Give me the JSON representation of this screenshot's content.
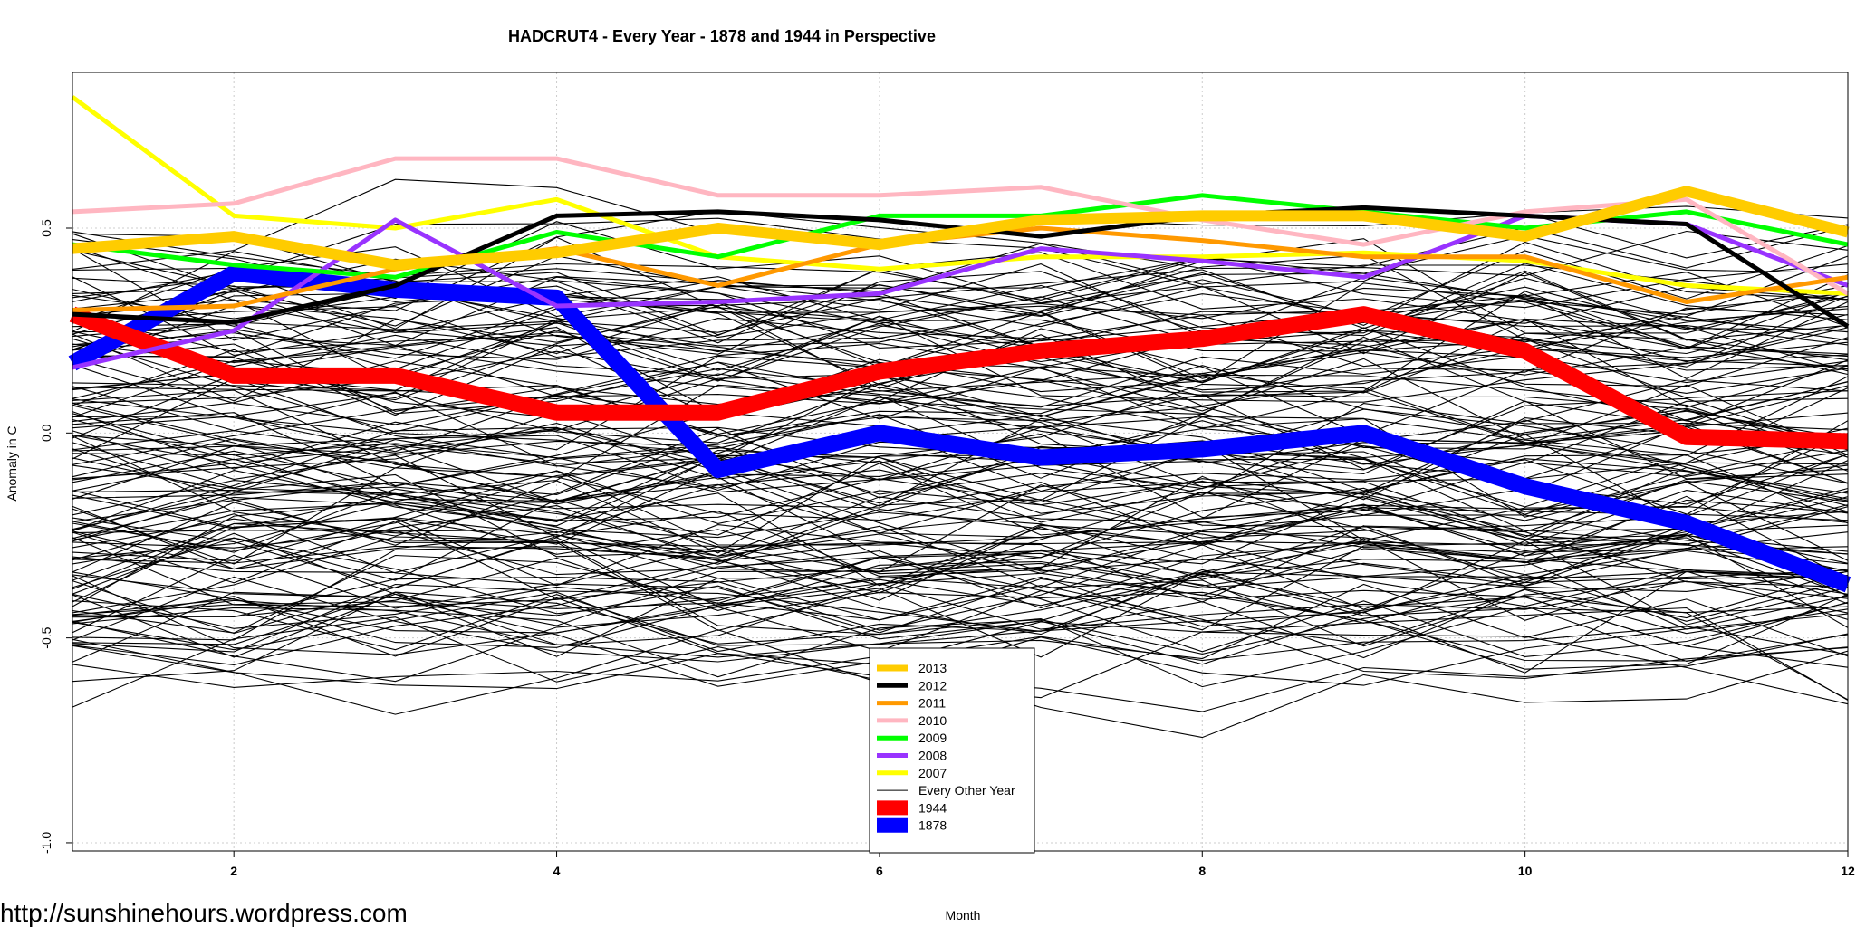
{
  "watermark": "http://sunshinehours.wordpress.com",
  "chart_data": {
    "type": "line",
    "title": "HADCRUT4 - Every Year - 1878 and 1944 in Perspective",
    "xlabel": "Month",
    "ylabel": "Anomaly in C",
    "x": [
      1,
      2,
      3,
      4,
      5,
      6,
      7,
      8,
      9,
      10,
      11,
      12
    ],
    "xlim": [
      1,
      12
    ],
    "ylim": [
      -1.02,
      0.88
    ],
    "x_ticks": [
      2,
      4,
      6,
      8,
      10,
      12
    ],
    "y_ticks": [
      -1.0,
      -0.5,
      0.0,
      0.5
    ],
    "y_tick_labels": [
      "-1.0",
      "-0.5",
      "0.0",
      "0.5"
    ],
    "grid": true,
    "legend_position": "bottom-center",
    "background_series": {
      "name": "Every Other Year",
      "color": "#000000",
      "count": 150
    },
    "series": [
      {
        "name": "2013",
        "color": "#FFCC00",
        "style": "thick",
        "values": [
          0.45,
          0.48,
          0.41,
          0.44,
          0.5,
          0.46,
          0.52,
          0.53,
          0.53,
          0.48,
          0.59,
          0.49
        ]
      },
      {
        "name": "2012",
        "color": "#000000",
        "style": "medium",
        "values": [
          0.29,
          0.27,
          0.36,
          0.53,
          0.54,
          0.52,
          0.48,
          0.53,
          0.55,
          0.53,
          0.51,
          0.26
        ]
      },
      {
        "name": "2011",
        "color": "#FF9900",
        "style": "medium",
        "values": [
          0.3,
          0.31,
          0.4,
          0.45,
          0.36,
          0.46,
          0.5,
          0.47,
          0.43,
          0.43,
          0.32,
          0.38
        ]
      },
      {
        "name": "2010",
        "color": "#FFB6C1",
        "style": "medium",
        "values": [
          0.54,
          0.56,
          0.67,
          0.67,
          0.58,
          0.58,
          0.6,
          0.52,
          0.46,
          0.54,
          0.57,
          0.34
        ]
      },
      {
        "name": "2009",
        "color": "#00FF00",
        "style": "medium",
        "values": [
          0.46,
          0.41,
          0.38,
          0.49,
          0.43,
          0.53,
          0.53,
          0.58,
          0.54,
          0.5,
          0.54,
          0.46
        ]
      },
      {
        "name": "2008",
        "color": "#9933FF",
        "style": "medium",
        "values": [
          0.16,
          0.25,
          0.52,
          0.31,
          0.32,
          0.34,
          0.45,
          0.42,
          0.38,
          0.53,
          0.51,
          0.36
        ]
      },
      {
        "name": "2007",
        "color": "#FFFF00",
        "style": "medium",
        "values": [
          0.82,
          0.53,
          0.5,
          0.57,
          0.43,
          0.4,
          0.43,
          0.43,
          0.44,
          0.42,
          0.36,
          0.34
        ]
      },
      {
        "name": "1944",
        "color": "#FF0000",
        "style": "heavy",
        "values": [
          0.29,
          0.14,
          0.14,
          0.05,
          0.05,
          0.15,
          0.2,
          0.23,
          0.29,
          0.2,
          -0.01,
          -0.02
        ]
      },
      {
        "name": "1878",
        "color": "#0000FF",
        "style": "heavy",
        "values": [
          0.17,
          0.39,
          0.35,
          0.33,
          -0.09,
          0.0,
          -0.06,
          -0.04,
          0.0,
          -0.13,
          -0.22,
          -0.37
        ]
      }
    ],
    "legend_order": [
      "2013",
      "2012",
      "2011",
      "2010",
      "2009",
      "2008",
      "2007",
      "Every Other Year",
      "1944",
      "1878"
    ]
  }
}
